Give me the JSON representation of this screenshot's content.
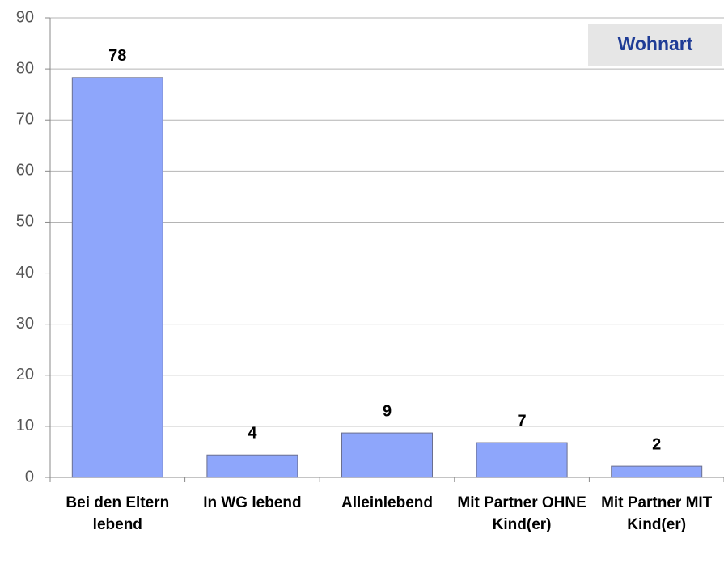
{
  "chart_data": {
    "type": "bar",
    "title": "Wohnart",
    "categories": [
      "Bei den Eltern lebend",
      "In WG lebend",
      "Alleinlebend",
      "Mit Partner OHNE Kind(er)",
      "Mit Partner MIT Kind(er)"
    ],
    "values": [
      78.3,
      4.4,
      8.7,
      6.8,
      2.2
    ],
    "value_labels": [
      "78",
      "4",
      "9",
      "7",
      "2"
    ],
    "color": "#8ea6fb",
    "ylim": [
      0,
      90
    ],
    "yticks": [
      0,
      10,
      20,
      30,
      40,
      50,
      60,
      70,
      80,
      90
    ],
    "grid": true
  }
}
